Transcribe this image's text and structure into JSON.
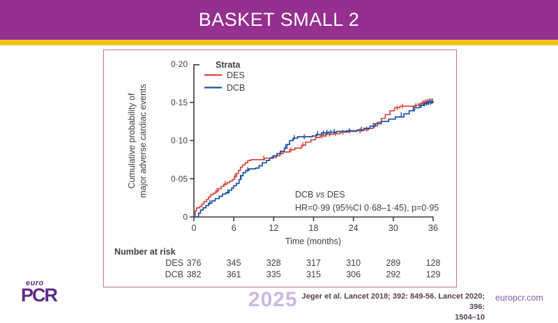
{
  "slide": {
    "title": "BASKET SMALL 2",
    "accent_color": "#f3c317",
    "header_color": "#952f90",
    "panel_border_color": "#c96f88"
  },
  "footer": {
    "logo_top": "euro",
    "logo_main": "PCR",
    "year": "2025",
    "citation_line1": "Jeger et al. Lancet 2018; 392: 849-56. Lancet 2020; 396:",
    "citation_line2": "1504–10",
    "site": "europcr.com"
  },
  "chart_data": {
    "type": "line",
    "subtype": "kaplan-meier-step",
    "xlabel": "Time (months)",
    "ylabel_lines": [
      "Cumulative probability of",
      "major adverse cardiac events"
    ],
    "xlim": [
      0,
      36
    ],
    "ylim": [
      0,
      0.2
    ],
    "xticks": [
      0,
      6,
      12,
      18,
      24,
      30,
      36
    ],
    "yticks": [
      {
        "value": 0,
        "label": "0"
      },
      {
        "value": 0.05,
        "label": "0·05"
      },
      {
        "value": 0.1,
        "label": "0·10"
      },
      {
        "value": 0.15,
        "label": "0·15"
      },
      {
        "value": 0.2,
        "label": "0·20"
      }
    ],
    "legend_title": "Strata",
    "legend_position": "top-left-inside",
    "grid": false,
    "axis_color": "#3c3c3c",
    "text_color": "#3f3f3f",
    "series": [
      {
        "name": "DES",
        "color": "#d6473f",
        "steps": [
          [
            0,
            0
          ],
          [
            0.2,
            0.008
          ],
          [
            0.4,
            0.012
          ],
          [
            0.9,
            0.014
          ],
          [
            1.2,
            0.017
          ],
          [
            1.5,
            0.02
          ],
          [
            1.9,
            0.023
          ],
          [
            2.2,
            0.026
          ],
          [
            2.5,
            0.029
          ],
          [
            2.9,
            0.031
          ],
          [
            3.3,
            0.034
          ],
          [
            3.7,
            0.037
          ],
          [
            4.1,
            0.04
          ],
          [
            4.5,
            0.043
          ],
          [
            5.0,
            0.045
          ],
          [
            5.4,
            0.047
          ],
          [
            5.8,
            0.049
          ],
          [
            6.1,
            0.053
          ],
          [
            6.4,
            0.057
          ],
          [
            6.7,
            0.061
          ],
          [
            7.0,
            0.065
          ],
          [
            7.3,
            0.068
          ],
          [
            7.7,
            0.071
          ],
          [
            8.1,
            0.074
          ],
          [
            8.6,
            0.075
          ],
          [
            10.6,
            0.077
          ],
          [
            11.6,
            0.078
          ],
          [
            12.4,
            0.08
          ],
          [
            12.9,
            0.083
          ],
          [
            13.4,
            0.085
          ],
          [
            14.4,
            0.088
          ],
          [
            15.2,
            0.09
          ],
          [
            16.2,
            0.094
          ],
          [
            16.8,
            0.098
          ],
          [
            17.6,
            0.101
          ],
          [
            18.3,
            0.104
          ],
          [
            19.0,
            0.106
          ],
          [
            19.8,
            0.108
          ],
          [
            21.0,
            0.109
          ],
          [
            22.0,
            0.111
          ],
          [
            23.2,
            0.112
          ],
          [
            24.5,
            0.113
          ],
          [
            25.5,
            0.114
          ],
          [
            26.3,
            0.116
          ],
          [
            27.0,
            0.119
          ],
          [
            27.6,
            0.124
          ],
          [
            28.2,
            0.129
          ],
          [
            28.8,
            0.134
          ],
          [
            29.5,
            0.139
          ],
          [
            30.2,
            0.143
          ],
          [
            31.0,
            0.145
          ],
          [
            33.2,
            0.146
          ],
          [
            33.8,
            0.148
          ],
          [
            34.3,
            0.15
          ],
          [
            35.0,
            0.151
          ],
          [
            36,
            0.152
          ]
        ],
        "censor_marks": [
          [
            3.5,
            0.035
          ],
          [
            4.7,
            0.044
          ],
          [
            6.2,
            0.054
          ],
          [
            10.5,
            0.077
          ],
          [
            13.1,
            0.084
          ],
          [
            14.6,
            0.088
          ],
          [
            16.4,
            0.095
          ],
          [
            19.3,
            0.106
          ],
          [
            19.9,
            0.108
          ],
          [
            20.4,
            0.108
          ],
          [
            21.3,
            0.109
          ],
          [
            22.4,
            0.111
          ],
          [
            25.0,
            0.113
          ],
          [
            26.0,
            0.115
          ],
          [
            27.2,
            0.12
          ],
          [
            30.6,
            0.143
          ],
          [
            31.4,
            0.145
          ],
          [
            33.4,
            0.146
          ],
          [
            34.5,
            0.15
          ],
          [
            34.8,
            0.151
          ],
          [
            35.1,
            0.151
          ],
          [
            35.4,
            0.152
          ],
          [
            35.6,
            0.152
          ],
          [
            35.9,
            0.152
          ]
        ]
      },
      {
        "name": "DCB",
        "color": "#1d4f9f",
        "steps": [
          [
            0,
            0
          ],
          [
            0.7,
            0.005
          ],
          [
            1.0,
            0.009
          ],
          [
            1.4,
            0.012
          ],
          [
            1.8,
            0.015
          ],
          [
            2.2,
            0.018
          ],
          [
            2.7,
            0.021
          ],
          [
            3.2,
            0.024
          ],
          [
            3.8,
            0.027
          ],
          [
            4.3,
            0.03
          ],
          [
            4.8,
            0.032
          ],
          [
            5.3,
            0.035
          ],
          [
            5.7,
            0.038
          ],
          [
            6.0,
            0.041
          ],
          [
            6.4,
            0.044
          ],
          [
            6.8,
            0.049
          ],
          [
            7.1,
            0.054
          ],
          [
            7.4,
            0.058
          ],
          [
            7.8,
            0.061
          ],
          [
            8.3,
            0.063
          ],
          [
            9.3,
            0.064
          ],
          [
            9.8,
            0.067
          ],
          [
            10.3,
            0.071
          ],
          [
            10.9,
            0.074
          ],
          [
            11.4,
            0.077
          ],
          [
            11.9,
            0.08
          ],
          [
            12.5,
            0.083
          ],
          [
            13.0,
            0.086
          ],
          [
            13.6,
            0.09
          ],
          [
            14.0,
            0.095
          ],
          [
            14.4,
            0.1
          ],
          [
            14.9,
            0.103
          ],
          [
            15.6,
            0.105
          ],
          [
            17.8,
            0.106
          ],
          [
            18.4,
            0.108
          ],
          [
            19.2,
            0.11
          ],
          [
            20.2,
            0.111
          ],
          [
            21.5,
            0.112
          ],
          [
            23.0,
            0.113
          ],
          [
            24.6,
            0.114
          ],
          [
            25.6,
            0.116
          ],
          [
            26.5,
            0.119
          ],
          [
            27.3,
            0.122
          ],
          [
            28.2,
            0.125
          ],
          [
            29.3,
            0.128
          ],
          [
            30.3,
            0.131
          ],
          [
            31.6,
            0.135
          ],
          [
            32.4,
            0.139
          ],
          [
            33.2,
            0.143
          ],
          [
            34.0,
            0.146
          ],
          [
            34.6,
            0.148
          ],
          [
            35.2,
            0.15
          ],
          [
            36,
            0.151
          ]
        ],
        "censor_marks": [
          [
            2.4,
            0.019
          ],
          [
            5.1,
            0.033
          ],
          [
            7.0,
            0.052
          ],
          [
            8.1,
            0.062
          ],
          [
            13.8,
            0.092
          ],
          [
            15.1,
            0.104
          ],
          [
            16.6,
            0.105
          ],
          [
            18.6,
            0.109
          ],
          [
            19.5,
            0.11
          ],
          [
            20.0,
            0.111
          ],
          [
            20.6,
            0.111
          ],
          [
            21.1,
            0.112
          ],
          [
            23.4,
            0.113
          ],
          [
            25.2,
            0.115
          ],
          [
            27.0,
            0.12
          ],
          [
            31.2,
            0.134
          ],
          [
            33.0,
            0.142
          ],
          [
            34.2,
            0.146
          ],
          [
            34.7,
            0.148
          ],
          [
            35.0,
            0.149
          ],
          [
            35.3,
            0.15
          ],
          [
            35.6,
            0.15
          ],
          [
            35.8,
            0.151
          ]
        ]
      }
    ],
    "annotation": {
      "group1": "DCB",
      "vs": "vs",
      "group2": "DES",
      "stats": "HR=0·99 (95%CI 0·68–1·45), p=0·95"
    },
    "number_at_risk": {
      "label": "Number at risk",
      "rows": [
        {
          "name": "DES",
          "values": [
            "376",
            "345",
            "328",
            "317",
            "310",
            "289",
            "128"
          ]
        },
        {
          "name": "DCB",
          "values": [
            "382",
            "361",
            "335",
            "315",
            "306",
            "292",
            "129"
          ]
        }
      ]
    }
  }
}
